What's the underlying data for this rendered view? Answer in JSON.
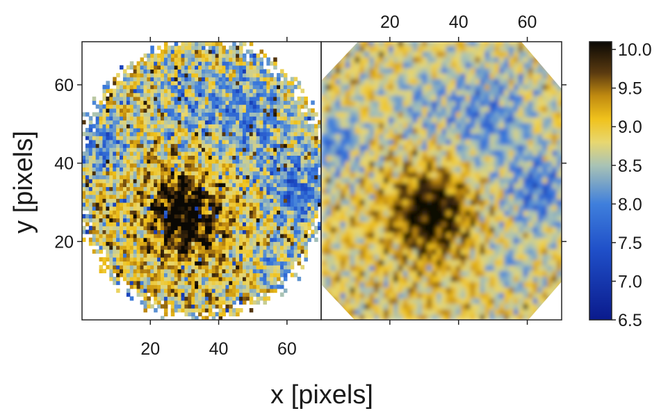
{
  "chart_data": [
    {
      "type": "heatmap",
      "panel": "left",
      "style": "pixelated",
      "xlabel": "x [pixels]",
      "ylabel": "y [pixels]",
      "xlim": [
        0,
        70
      ],
      "ylim": [
        0,
        71
      ],
      "x_ticks": [
        20,
        40,
        60
      ],
      "y_ticks": [
        20,
        40,
        60
      ],
      "x_tick_labels": [
        "20",
        "40",
        "60"
      ],
      "y_tick_labels": [
        "20",
        "40",
        "60"
      ],
      "footprint": "roughly circular, centre near x 35, y 36",
      "peak": {
        "x": 30,
        "y": 27,
        "value": 10.0
      }
    },
    {
      "type": "heatmap",
      "panel": "right",
      "style": "interpolated",
      "xlim": [
        0,
        70
      ],
      "ylim": [
        0,
        71
      ],
      "x_ticks": [
        20,
        40,
        60
      ],
      "x_tick_labels": [
        "20",
        "40",
        "60"
      ],
      "x_tick_position": "top",
      "footprint": "octagon",
      "peak": {
        "x": 32,
        "y": 27,
        "value": 10.0
      }
    }
  ],
  "colorbar": {
    "min": 6.5,
    "max": 10.1,
    "ticks": [
      6.5,
      7.0,
      7.5,
      8.0,
      8.5,
      9.0,
      9.5,
      10.0
    ],
    "tick_labels": [
      "6.5",
      "7.0",
      "7.5",
      "8.0",
      "8.5",
      "9.0",
      "9.5",
      "10.0"
    ],
    "colormap": [
      {
        "v": 6.5,
        "color": "#0a1a8c"
      },
      {
        "v": 7.4,
        "color": "#1f4fc8"
      },
      {
        "v": 8.0,
        "color": "#3f7fdc"
      },
      {
        "v": 8.5,
        "color": "#a9c3b5"
      },
      {
        "v": 8.8,
        "color": "#e8d770"
      },
      {
        "v": 9.1,
        "color": "#f0c21c"
      },
      {
        "v": 9.4,
        "color": "#c08a10"
      },
      {
        "v": 9.7,
        "color": "#5a3a10"
      },
      {
        "v": 10.1,
        "color": "#0a0804"
      }
    ]
  },
  "labels": {
    "xlabel": "x [pixels]",
    "ylabel": "y [pixels]"
  }
}
